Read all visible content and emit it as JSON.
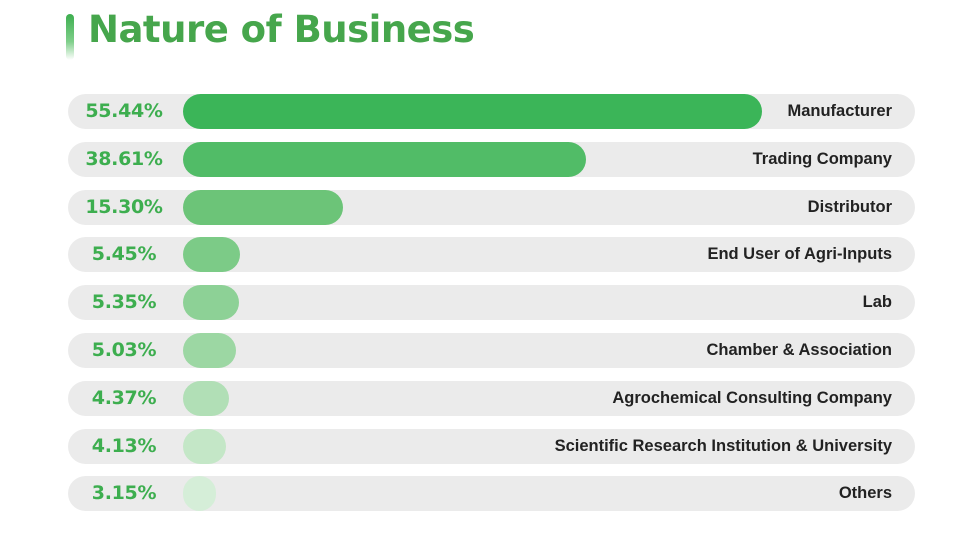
{
  "chart_data": {
    "type": "bar",
    "title": "Nature of Business",
    "orientation": "horizontal",
    "categories": [
      "Manufacturer",
      "Trading Company",
      "Distributor",
      "End User of Agri-Inputs",
      "Lab",
      "Chamber & Association",
      "Agrochemical Consulting Company",
      "Scientific Research Institution & University",
      "Others"
    ],
    "values": [
      55.44,
      38.61,
      15.3,
      5.45,
      5.35,
      5.03,
      4.37,
      4.13,
      3.15
    ],
    "value_labels": [
      "55.44%",
      "38.61%",
      "15.30%",
      "5.45%",
      "5.35%",
      "5.03%",
      "4.37%",
      "4.13%",
      "3.15%"
    ],
    "xlabel": "",
    "ylabel": "",
    "grid": false,
    "colors": {
      "title": "#46a64c",
      "percent_text": "#3dae4f",
      "track": "#ebebeb",
      "label_text": "#222222",
      "bars": [
        "#3bb558",
        "#51bc67",
        "#6cc478",
        "#7ccb87",
        "#8dd196",
        "#9cd7a3",
        "#b1dfb6",
        "#c4e7c7",
        "#d5eed8"
      ]
    }
  }
}
